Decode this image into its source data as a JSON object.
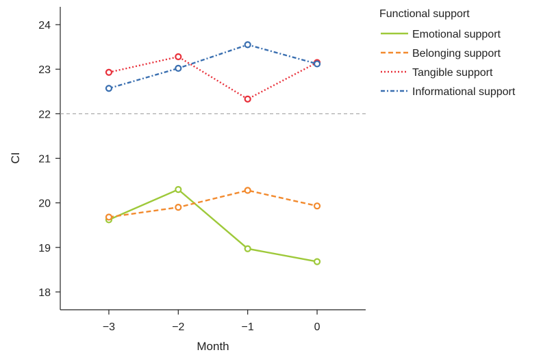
{
  "chart_data": {
    "type": "line",
    "xlabel": "Month",
    "ylabel": "CI",
    "x": [
      -3,
      -2,
      -1,
      0
    ],
    "x_tick_labels": [
      "−3",
      "−2",
      "−1",
      "0"
    ],
    "xlim": [
      -3.7,
      0.7
    ],
    "ylim": [
      17.6,
      24.4
    ],
    "y_ticks": [
      18,
      19,
      20,
      21,
      22,
      23,
      24
    ],
    "reference_line": {
      "y": 22,
      "style": "dashed",
      "color": "#aaaaaa"
    },
    "legend": {
      "title": "Functional support",
      "position": "top-right, outside plot"
    },
    "grid": false,
    "series": [
      {
        "name": "Emotional support",
        "values": [
          19.62,
          20.3,
          18.97,
          18.68
        ],
        "color": "#9ec93a",
        "line_style": "solid"
      },
      {
        "name": "Belonging support",
        "values": [
          19.68,
          19.9,
          20.28,
          19.93
        ],
        "color": "#f28a2e",
        "line_style": "dashed"
      },
      {
        "name": "Tangible support",
        "values": [
          22.93,
          23.28,
          22.33,
          23.15
        ],
        "color": "#e8303a",
        "line_style": "dotted"
      },
      {
        "name": "Informational support",
        "values": [
          22.57,
          23.02,
          23.55,
          23.12
        ],
        "color": "#3a6fb0",
        "line_style": "dashdot"
      }
    ]
  }
}
